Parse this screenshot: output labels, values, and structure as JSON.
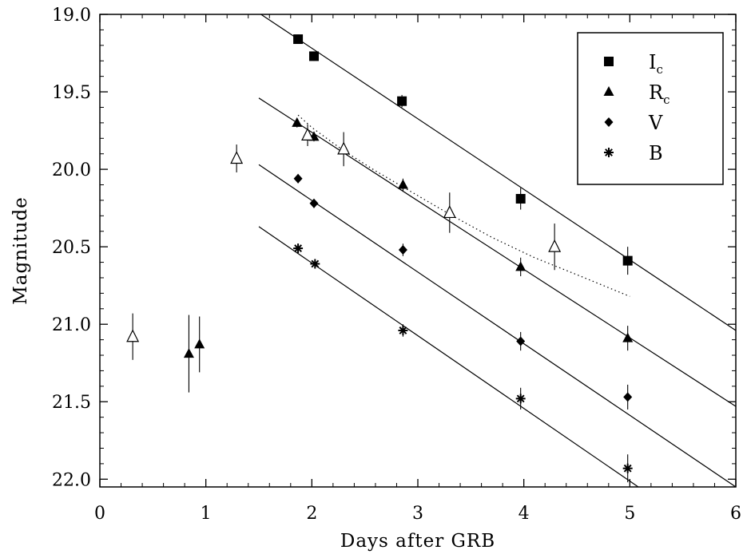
{
  "chart_data": {
    "type": "scatter",
    "title": "",
    "xlabel": "Days after GRB",
    "ylabel": "Magnitude",
    "xlim": [
      0,
      6
    ],
    "ylim": [
      22.05,
      19.0
    ],
    "y_inverted": true,
    "x_ticks": [
      0,
      1,
      2,
      3,
      4,
      5,
      6
    ],
    "x_tick_labels": [
      "0",
      "1",
      "2",
      "3",
      "4",
      "5",
      "6"
    ],
    "y_ticks": [
      19.0,
      19.5,
      20.0,
      20.5,
      21.0,
      21.5,
      22.0
    ],
    "y_tick_labels": [
      "19.0",
      "19.5",
      "20.0",
      "20.5",
      "21.0",
      "21.5",
      "22.0"
    ],
    "grid": false,
    "legend_position": "top-right",
    "legend": [
      {
        "main": "I",
        "sub": "c",
        "marker": "square"
      },
      {
        "main": "R",
        "sub": "c",
        "marker": "triangle"
      },
      {
        "main": "V",
        "sub": "",
        "marker": "diamond"
      },
      {
        "main": "B",
        "sub": "",
        "marker": "asterisk"
      }
    ],
    "series": [
      {
        "name": "Ic",
        "marker": "square",
        "points": [
          {
            "x": 1.87,
            "y": 19.16,
            "err": 0.03
          },
          {
            "x": 2.02,
            "y": 19.27,
            "err": 0.03
          },
          {
            "x": 2.85,
            "y": 19.56,
            "err": 0.04
          },
          {
            "x": 3.97,
            "y": 20.19,
            "err": 0.07
          },
          {
            "x": 4.98,
            "y": 20.59,
            "err": 0.09
          }
        ]
      },
      {
        "name": "Rc",
        "marker": "triangle",
        "points": [
          {
            "x": 0.84,
            "y": 21.19,
            "err": 0.25
          },
          {
            "x": 0.94,
            "y": 21.13,
            "err": 0.18
          },
          {
            "x": 1.86,
            "y": 19.7,
            "err": 0.03
          },
          {
            "x": 2.02,
            "y": 19.79,
            "err": 0.03
          },
          {
            "x": 2.86,
            "y": 20.1,
            "err": 0.04
          },
          {
            "x": 3.97,
            "y": 20.63,
            "err": 0.06
          },
          {
            "x": 4.98,
            "y": 21.09,
            "err": 0.08
          }
        ]
      },
      {
        "name": "V",
        "marker": "diamond",
        "points": [
          {
            "x": 1.87,
            "y": 20.06,
            "err": 0.03
          },
          {
            "x": 2.02,
            "y": 20.22,
            "err": 0.03
          },
          {
            "x": 2.86,
            "y": 20.52,
            "err": 0.04
          },
          {
            "x": 3.97,
            "y": 21.11,
            "err": 0.06
          },
          {
            "x": 4.98,
            "y": 21.47,
            "err": 0.08
          }
        ]
      },
      {
        "name": "B",
        "marker": "asterisk",
        "points": [
          {
            "x": 1.87,
            "y": 20.51,
            "err": 0.03
          },
          {
            "x": 2.03,
            "y": 20.61,
            "err": 0.03
          },
          {
            "x": 2.86,
            "y": 21.04,
            "err": 0.04
          },
          {
            "x": 3.97,
            "y": 21.48,
            "err": 0.07
          },
          {
            "x": 4.98,
            "y": 21.93,
            "err": 0.09
          }
        ]
      },
      {
        "name": "",
        "marker": "open-triangle",
        "points": [
          {
            "x": 0.31,
            "y": 21.08,
            "err": 0.15
          },
          {
            "x": 1.29,
            "y": 19.93,
            "err": 0.09
          },
          {
            "x": 1.96,
            "y": 19.78,
            "err": 0.07
          },
          {
            "x": 2.3,
            "y": 19.87,
            "err": 0.11
          },
          {
            "x": 3.3,
            "y": 20.28,
            "err": 0.13
          },
          {
            "x": 4.29,
            "y": 20.5,
            "err": 0.15
          }
        ]
      }
    ],
    "fit_lines": [
      {
        "name": "Ic",
        "x": [
          1.52,
          6.0
        ],
        "y": [
          19.0,
          21.04
        ]
      },
      {
        "name": "Rc",
        "x": [
          1.5,
          6.0
        ],
        "y": [
          19.54,
          21.53
        ]
      },
      {
        "name": "V",
        "x": [
          1.5,
          6.0
        ],
        "y": [
          19.97,
          22.05
        ]
      },
      {
        "name": "B",
        "x": [
          1.5,
          5.08
        ],
        "y": [
          20.37,
          22.05
        ]
      }
    ],
    "dotted_curve": {
      "x": [
        1.87,
        2.0,
        2.3,
        2.6,
        2.9,
        3.3,
        3.7,
        4.1,
        4.5,
        5.0
      ],
      "y": [
        19.65,
        19.73,
        19.88,
        20.01,
        20.13,
        20.29,
        20.44,
        20.57,
        20.68,
        20.82
      ]
    }
  }
}
